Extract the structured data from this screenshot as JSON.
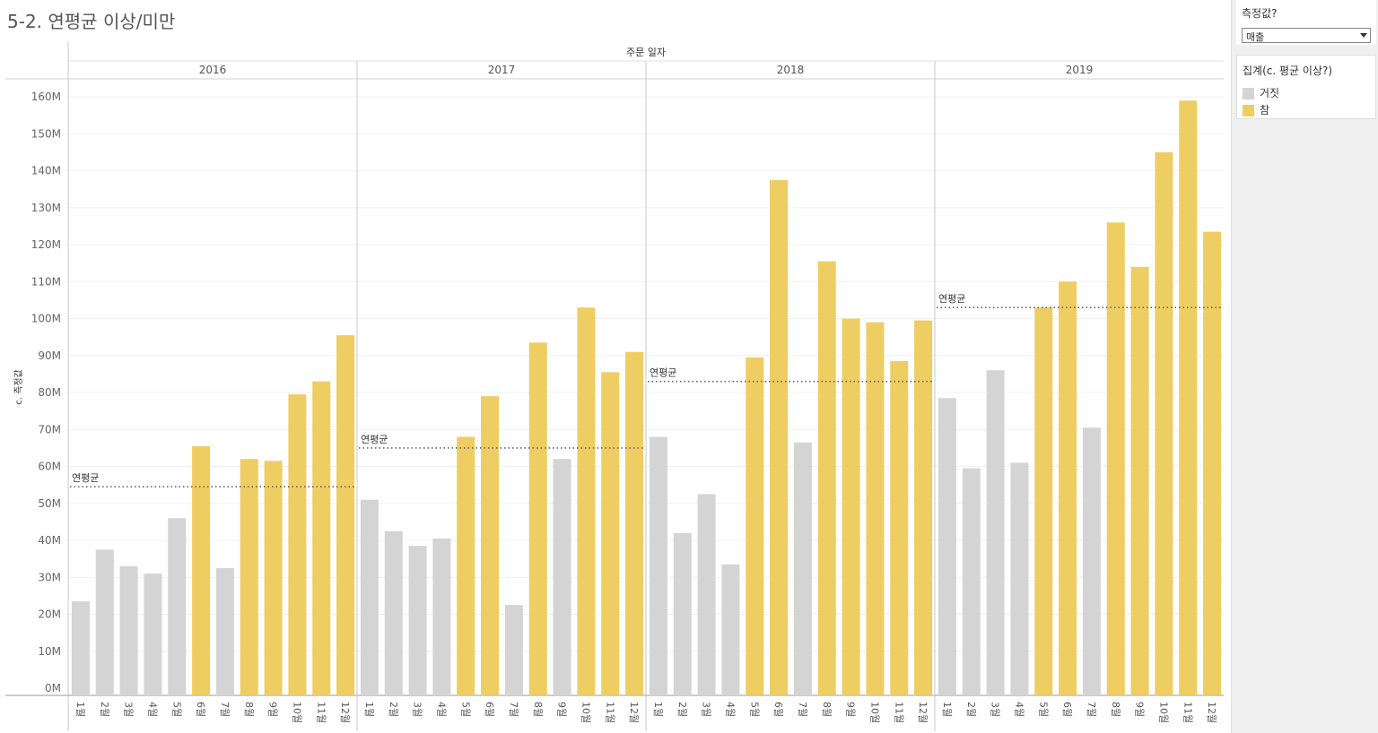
{
  "title": "5-2. 연평균 이상/미만",
  "parameter": {
    "label": "측정값?",
    "selected": "매출"
  },
  "legend": {
    "title": "집계(c. 평균 이상?)",
    "items": [
      {
        "label": "거짓",
        "color": "#d4d4d4"
      },
      {
        "label": "참",
        "color": "#eecd62"
      }
    ]
  },
  "chart_data": {
    "type": "bar",
    "header_title": "주문 일자",
    "ylabel": "c. 측정값",
    "ylim": [
      0,
      165
    ],
    "yticks": [
      0,
      10,
      20,
      30,
      40,
      50,
      60,
      70,
      80,
      90,
      100,
      110,
      120,
      130,
      140,
      150,
      160
    ],
    "ytick_labels": [
      "0M",
      "10M",
      "20M",
      "30M",
      "40M",
      "50M",
      "60M",
      "70M",
      "80M",
      "90M",
      "100M",
      "110M",
      "120M",
      "130M",
      "140M",
      "150M",
      "160M"
    ],
    "avg_label": "연평균",
    "month_labels": [
      "1월",
      "2월",
      "3월",
      "4월",
      "5월",
      "6월",
      "7월",
      "8월",
      "9월",
      "10월",
      "11월",
      "12월"
    ],
    "years": [
      {
        "year": "2016",
        "average": 54.5,
        "values": [
          23.5,
          37.5,
          33,
          31,
          46,
          65.5,
          32.5,
          62,
          61.5,
          79.5,
          83,
          95.5
        ],
        "above_average": [
          false,
          false,
          false,
          false,
          false,
          true,
          false,
          true,
          true,
          true,
          true,
          true
        ]
      },
      {
        "year": "2017",
        "average": 65,
        "values": [
          51,
          42.5,
          38.5,
          40.5,
          68,
          79,
          22.5,
          93.5,
          62,
          103,
          85.5,
          91
        ],
        "above_average": [
          false,
          false,
          false,
          false,
          true,
          true,
          false,
          true,
          false,
          true,
          true,
          true
        ]
      },
      {
        "year": "2018",
        "average": 83,
        "values": [
          68,
          42,
          52.5,
          33.5,
          89.5,
          137.5,
          66.5,
          115.5,
          100,
          99,
          88.5,
          99.5
        ],
        "above_average": [
          false,
          false,
          false,
          false,
          true,
          true,
          false,
          true,
          true,
          true,
          true,
          true
        ]
      },
      {
        "year": "2019",
        "average": 103,
        "values": [
          78.5,
          59.5,
          86,
          61,
          103,
          110,
          70.5,
          126,
          114,
          145,
          159,
          123.5
        ],
        "above_average": [
          false,
          false,
          false,
          false,
          true,
          true,
          false,
          true,
          true,
          true,
          true,
          true
        ]
      }
    ]
  }
}
